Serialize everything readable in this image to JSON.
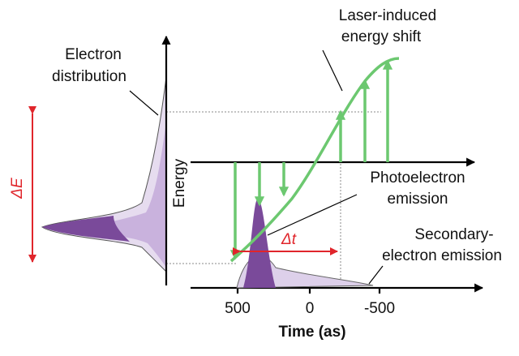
{
  "laser_label": [
    "Laser-induced",
    "energy shift"
  ],
  "distribution_label": [
    "Electron",
    "distribution"
  ],
  "delta_e": "ΔE",
  "energy_label": "Energy",
  "photo_label": [
    "Photoelectron",
    "emission"
  ],
  "delta_t": "Δt",
  "secondary_label": [
    "Secondary-",
    "electron emission"
  ],
  "time_axis": {
    "label": "Time (as)",
    "ticks": [
      "500",
      "0",
      "-500"
    ]
  }
}
